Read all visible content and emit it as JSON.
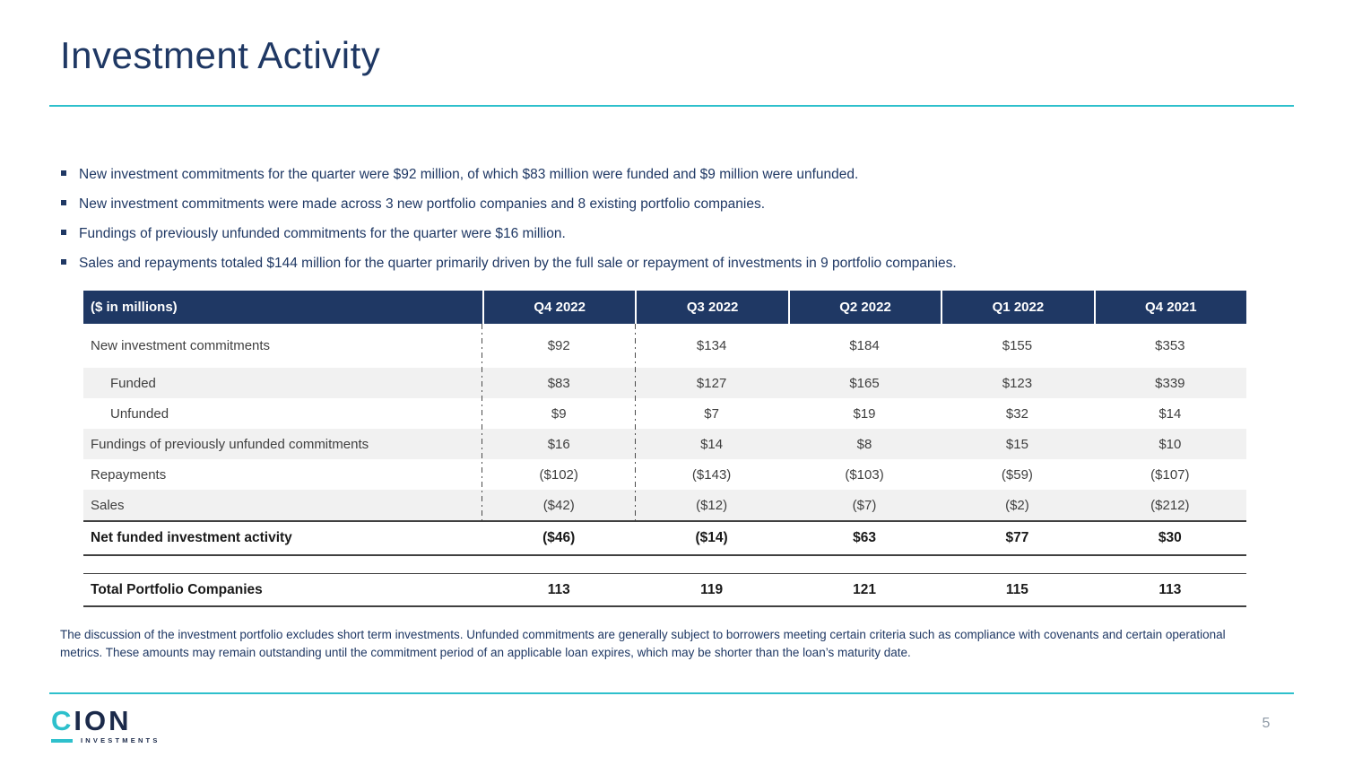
{
  "slide": {
    "title": "Investment Activity",
    "page_number": "5"
  },
  "bullets": [
    "New investment commitments for the quarter were $92 million, of which $83 million were funded and $9 million were unfunded.",
    "New investment commitments were made across 3 new portfolio companies and 8 existing portfolio companies.",
    "Fundings of previously unfunded commitments for the quarter were $16 million.",
    "Sales and repayments totaled $144 million for the quarter primarily driven by the full sale or repayment of investments in 9 portfolio companies."
  ],
  "table": {
    "header": [
      "($ in millions)",
      "Q4 2022",
      "Q3 2022",
      "Q2 2022",
      "Q1 2022",
      "Q4 2021"
    ],
    "rows": [
      {
        "label": "New investment commitments",
        "values": [
          "$92",
          "$134",
          "$184",
          "$155",
          "$353"
        ]
      },
      {
        "label": "Funded",
        "values": [
          "$83",
          "$127",
          "$165",
          "$123",
          "$339"
        ]
      },
      {
        "label": "Unfunded",
        "values": [
          "$9",
          "$7",
          "$19",
          "$32",
          "$14"
        ]
      },
      {
        "label": "Fundings of previously unfunded commitments",
        "values": [
          "$16",
          "$14",
          "$8",
          "$15",
          "$10"
        ]
      },
      {
        "label": "Repayments",
        "values": [
          "($102)",
          "($143)",
          "($103)",
          "($59)",
          "($107)"
        ]
      },
      {
        "label": "Sales",
        "values": [
          "($42)",
          "($12)",
          "($7)",
          "($2)",
          "($212)"
        ]
      }
    ],
    "net_row": {
      "label": "Net funded investment activity",
      "values": [
        "($46)",
        "($14)",
        "$63",
        "$77",
        "$30"
      ]
    },
    "total_row": {
      "label": "Total Portfolio Companies",
      "values": [
        "113",
        "119",
        "121",
        "115",
        "113"
      ]
    }
  },
  "footnote": "The discussion of the investment portfolio excludes short term investments. Unfunded commitments are generally subject to borrowers meeting certain criteria such as compliance with covenants and certain operational metrics. These amounts may remain outstanding until the commitment period of an applicable loan expires, which may be shorter than the loan’s maturity date.",
  "logo": {
    "c": "C",
    "ion": "ION",
    "tagline": "INVESTMENTS"
  },
  "colors": {
    "navy": "#1F3864",
    "teal": "#2EC0CC",
    "header_bg": "#1F3864",
    "zebra_stripe": "#F1F1F1",
    "body_text": "#404040",
    "page_number_gray": "#8E99A5"
  }
}
